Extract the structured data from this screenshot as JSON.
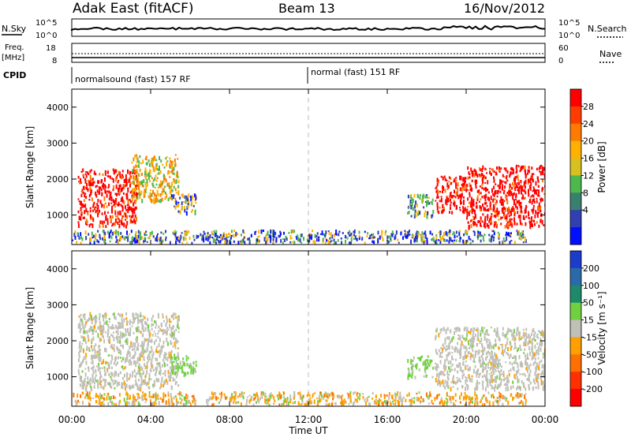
{
  "header": {
    "station": "Adak East (fitACF)",
    "beam": "Beam 13",
    "date": "16/Nov/2012"
  },
  "strip_panels": {
    "nsky_label": "N.Sky",
    "nsearch_label": "N.Search",
    "freq_label_top": "Freq.",
    "freq_label_bottom": "[MHz]",
    "nave_label": "Nave",
    "cpid_label": "CPID",
    "nsky_ticks": [
      "10^5",
      "10^0"
    ],
    "nsearch_ticks": [
      "10^5",
      "10^0"
    ],
    "freq_ticks": [
      "18",
      "8"
    ],
    "nave_ticks": [
      "60",
      "0"
    ],
    "cpid_segments": [
      {
        "name": "normalsound (fast) 157 RF",
        "start_hour": 0,
        "end_hour": 12
      },
      {
        "name": "normal (fast) 151 RF",
        "start_hour": 12,
        "end_hour": 24
      }
    ]
  },
  "chart_data": [
    {
      "type": "heatmap",
      "title": "",
      "xlabel": "Time UT",
      "ylabel": "Slant Range [km]",
      "xlim": [
        0,
        24
      ],
      "ylim": [
        180,
        4500
      ],
      "x_ticks": [
        "00:00",
        "04:00",
        "08:00",
        "12:00",
        "16:00",
        "20:00",
        "00:00"
      ],
      "y_ticks": [
        "1000",
        "2000",
        "3000",
        "4000"
      ],
      "colorbar": {
        "label": "Power [dB]",
        "ticks": [
          "28",
          "24",
          "20",
          "16",
          "12",
          "8",
          "4"
        ],
        "colors": [
          "#ff0000",
          "#ff3c00",
          "#ff7a00",
          "#ffb000",
          "#d8c020",
          "#4db84d",
          "#3a8070",
          "#3040b0",
          "#0010ff"
        ]
      },
      "regions": [
        {
          "x0": 0.3,
          "x1": 3.3,
          "y0": 700,
          "y1": 2300,
          "value": 28
        },
        {
          "x0": 3.0,
          "x1": 5.4,
          "y0": 1400,
          "y1": 2700,
          "value": 20
        },
        {
          "x0": 5.0,
          "x1": 6.3,
          "y0": 1100,
          "y1": 1600,
          "value": 6
        },
        {
          "x0": 17.0,
          "x1": 18.3,
          "y0": 1000,
          "y1": 1600,
          "value": 10
        },
        {
          "x0": 18.4,
          "x1": 20.0,
          "y0": 1100,
          "y1": 2100,
          "value": 26
        },
        {
          "x0": 20.0,
          "x1": 24.0,
          "y0": 700,
          "y1": 2400,
          "value": 28
        },
        {
          "x0": 0.0,
          "x1": 23.0,
          "y0": 250,
          "y1": 600,
          "value": 6
        }
      ]
    },
    {
      "type": "heatmap",
      "title": "",
      "xlabel": "Time UT",
      "ylabel": "Slant Range [km]",
      "xlim": [
        0,
        24
      ],
      "ylim": [
        180,
        4500
      ],
      "x_ticks": [
        "00:00",
        "04:00",
        "08:00",
        "12:00",
        "16:00",
        "20:00",
        "00:00"
      ],
      "y_ticks": [
        "1000",
        "2000",
        "3000",
        "4000"
      ],
      "colorbar": {
        "label": "Velocity [m s⁻¹]",
        "ticks": [
          "200",
          "100",
          "50",
          "15",
          "-15",
          "-50",
          "-100",
          "-200"
        ],
        "colors": [
          "#1c3ccc",
          "#2a6aaa",
          "#1d8a6a",
          "#70d040",
          "#c0c0b8",
          "#ffa000",
          "#ff7000",
          "#ff3000",
          "#ff0000"
        ]
      },
      "regions": [
        {
          "x0": 0.3,
          "x1": 5.4,
          "y0": 700,
          "y1": 2800,
          "value": 0
        },
        {
          "x0": 5.0,
          "x1": 6.3,
          "y0": 1100,
          "y1": 1600,
          "value": 40
        },
        {
          "x0": 17.0,
          "x1": 18.3,
          "y0": 1000,
          "y1": 1600,
          "value": 40
        },
        {
          "x0": 18.4,
          "x1": 24.0,
          "y0": 700,
          "y1": 2400,
          "value": 0
        },
        {
          "x0": 0.0,
          "x1": 23.0,
          "y0": 250,
          "y1": 600,
          "value": -40
        }
      ]
    }
  ]
}
